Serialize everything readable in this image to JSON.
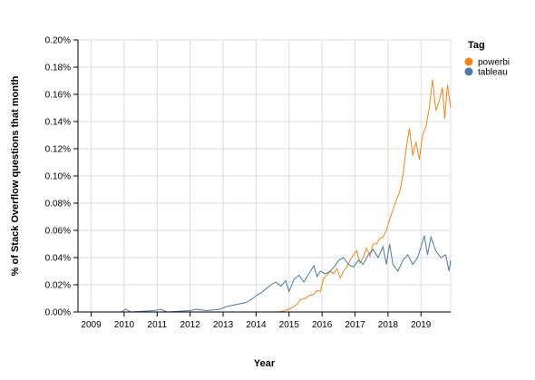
{
  "chart_data": {
    "type": "line",
    "xlabel": "Year",
    "ylabel": "% of Stack Overflow questions that month",
    "x_range": [
      2008.6,
      2019.9
    ],
    "ylim": [
      0,
      0.2
    ],
    "x_ticks": [
      {
        "value": 2009,
        "label": "2009"
      },
      {
        "value": 2010,
        "label": "2010"
      },
      {
        "value": 2011,
        "label": "2011"
      },
      {
        "value": 2012,
        "label": "2012"
      },
      {
        "value": 2013,
        "label": "2013"
      },
      {
        "value": 2014,
        "label": "2014"
      },
      {
        "value": 2015,
        "label": "2015"
      },
      {
        "value": 2016,
        "label": "2016"
      },
      {
        "value": 2017,
        "label": "2017"
      },
      {
        "value": 2018,
        "label": "2018"
      },
      {
        "value": 2019,
        "label": "2019"
      }
    ],
    "y_ticks": [
      {
        "value": 0.0,
        "label": "0.00%"
      },
      {
        "value": 0.02,
        "label": "0.02%"
      },
      {
        "value": 0.04,
        "label": "0.04%"
      },
      {
        "value": 0.06,
        "label": "0.06%"
      },
      {
        "value": 0.08,
        "label": "0.08%"
      },
      {
        "value": 0.1,
        "label": "0.10%"
      },
      {
        "value": 0.12,
        "label": "0.12%"
      },
      {
        "value": 0.14,
        "label": "0.14%"
      },
      {
        "value": 0.16,
        "label": "0.16%"
      },
      {
        "value": 0.18,
        "label": "0.18%"
      },
      {
        "value": 0.2,
        "label": "0.20%"
      }
    ],
    "grid": true,
    "legend": {
      "title": "Tag",
      "placement": "right"
    },
    "series": [
      {
        "name": "powerbi",
        "color": "#f58518",
        "points": [
          [
            2008.6,
            0
          ],
          [
            2014.5,
            0
          ],
          [
            2014.7,
            0.0002
          ],
          [
            2014.85,
            0.0008
          ],
          [
            2015.0,
            0.002
          ],
          [
            2015.15,
            0.004
          ],
          [
            2015.25,
            0.006
          ],
          [
            2015.35,
            0.009
          ],
          [
            2015.5,
            0.01
          ],
          [
            2015.6,
            0.012
          ],
          [
            2015.75,
            0.013
          ],
          [
            2015.85,
            0.016
          ],
          [
            2015.95,
            0.015
          ],
          [
            2016.05,
            0.025
          ],
          [
            2016.15,
            0.027
          ],
          [
            2016.25,
            0.03
          ],
          [
            2016.35,
            0.028
          ],
          [
            2016.45,
            0.032
          ],
          [
            2016.55,
            0.025
          ],
          [
            2016.65,
            0.03
          ],
          [
            2016.75,
            0.033
          ],
          [
            2016.85,
            0.038
          ],
          [
            2016.95,
            0.042
          ],
          [
            2017.05,
            0.045
          ],
          [
            2017.15,
            0.036
          ],
          [
            2017.25,
            0.04
          ],
          [
            2017.35,
            0.047
          ],
          [
            2017.45,
            0.041
          ],
          [
            2017.55,
            0.05
          ],
          [
            2017.65,
            0.05
          ],
          [
            2017.75,
            0.054
          ],
          [
            2017.85,
            0.055
          ],
          [
            2017.95,
            0.06
          ],
          [
            2018.05,
            0.068
          ],
          [
            2018.15,
            0.075
          ],
          [
            2018.25,
            0.082
          ],
          [
            2018.35,
            0.088
          ],
          [
            2018.45,
            0.1
          ],
          [
            2018.55,
            0.12
          ],
          [
            2018.65,
            0.135
          ],
          [
            2018.75,
            0.115
          ],
          [
            2018.85,
            0.125
          ],
          [
            2018.95,
            0.112
          ],
          [
            2019.05,
            0.13
          ],
          [
            2019.15,
            0.136
          ],
          [
            2019.25,
            0.15
          ],
          [
            2019.35,
            0.171
          ],
          [
            2019.45,
            0.148
          ],
          [
            2019.55,
            0.155
          ],
          [
            2019.65,
            0.165
          ],
          [
            2019.72,
            0.142
          ],
          [
            2019.8,
            0.167
          ],
          [
            2019.9,
            0.15
          ]
        ]
      },
      {
        "name": "tableau",
        "color": "#4c78a8",
        "points": [
          [
            2008.6,
            0
          ],
          [
            2009.9,
            0
          ],
          [
            2010.05,
            0.002
          ],
          [
            2010.2,
            0
          ],
          [
            2010.9,
            0.001
          ],
          [
            2011.1,
            0.002
          ],
          [
            2011.3,
            0
          ],
          [
            2012.0,
            0.001
          ],
          [
            2012.2,
            0.002
          ],
          [
            2012.5,
            0.001
          ],
          [
            2012.9,
            0.002
          ],
          [
            2013.1,
            0.004
          ],
          [
            2013.3,
            0.005
          ],
          [
            2013.5,
            0.006
          ],
          [
            2013.7,
            0.007
          ],
          [
            2013.9,
            0.01
          ],
          [
            2014.0,
            0.012
          ],
          [
            2014.15,
            0.014
          ],
          [
            2014.3,
            0.017
          ],
          [
            2014.45,
            0.02
          ],
          [
            2014.6,
            0.022
          ],
          [
            2014.75,
            0.019
          ],
          [
            2014.9,
            0.023
          ],
          [
            2015.0,
            0.015
          ],
          [
            2015.15,
            0.024
          ],
          [
            2015.3,
            0.027
          ],
          [
            2015.45,
            0.022
          ],
          [
            2015.6,
            0.028
          ],
          [
            2015.75,
            0.034
          ],
          [
            2015.85,
            0.026
          ],
          [
            2015.95,
            0.03
          ],
          [
            2016.1,
            0.028
          ],
          [
            2016.25,
            0.03
          ],
          [
            2016.4,
            0.034
          ],
          [
            2016.5,
            0.038
          ],
          [
            2016.65,
            0.04
          ],
          [
            2016.8,
            0.035
          ],
          [
            2016.95,
            0.033
          ],
          [
            2017.1,
            0.038
          ],
          [
            2017.25,
            0.035
          ],
          [
            2017.4,
            0.042
          ],
          [
            2017.55,
            0.046
          ],
          [
            2017.7,
            0.04
          ],
          [
            2017.85,
            0.048
          ],
          [
            2017.95,
            0.035
          ],
          [
            2018.05,
            0.05
          ],
          [
            2018.15,
            0.035
          ],
          [
            2018.3,
            0.03
          ],
          [
            2018.45,
            0.038
          ],
          [
            2018.6,
            0.042
          ],
          [
            2018.75,
            0.035
          ],
          [
            2018.9,
            0.04
          ],
          [
            2019.0,
            0.048
          ],
          [
            2019.1,
            0.056
          ],
          [
            2019.2,
            0.042
          ],
          [
            2019.3,
            0.055
          ],
          [
            2019.45,
            0.045
          ],
          [
            2019.6,
            0.04
          ],
          [
            2019.75,
            0.042
          ],
          [
            2019.85,
            0.03
          ],
          [
            2019.9,
            0.038
          ]
        ]
      }
    ]
  }
}
